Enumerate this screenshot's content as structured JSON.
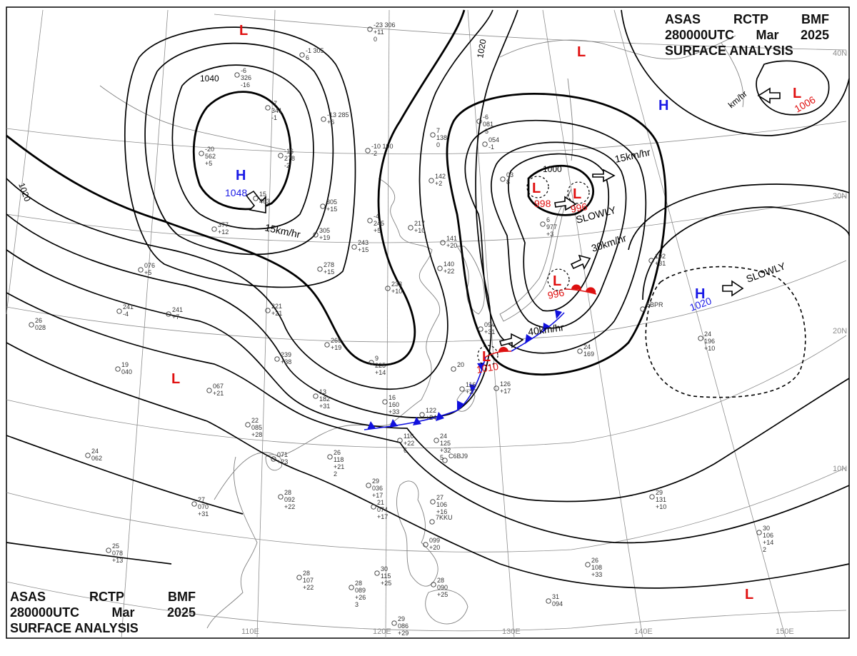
{
  "header": {
    "line1": [
      "ASAS",
      "RCTP",
      "BMF"
    ],
    "line2": [
      "280000UTC",
      "Mar",
      "2025"
    ],
    "line3": "SURFACE ANALYSIS"
  },
  "longitude_labels": [
    "110E",
    "120E",
    "130E",
    "140E",
    "150E"
  ],
  "latitude_labels": [
    "40N",
    "30N",
    "20N",
    "10N"
  ],
  "isobar_labels": [
    "1040",
    "1020",
    "1020",
    "1000"
  ],
  "colors": {
    "high": "#1a1ae6",
    "low": "#e01010",
    "cold_front": "#1010dd",
    "warm_front": "#dd1010",
    "isobar": "#000000",
    "grid": "#8c8c8c",
    "coast": "#808080"
  },
  "pressure_centers": [
    {
      "type": "H",
      "value": "1048",
      "color": "#1a1ae6"
    },
    {
      "type": "H",
      "value": "",
      "color": "#1a1ae6"
    },
    {
      "type": "H",
      "value": "1020",
      "color": "#1a1ae6"
    },
    {
      "type": "L",
      "value": "",
      "color": "#e01010"
    },
    {
      "type": "L",
      "value": "",
      "color": "#e01010"
    },
    {
      "type": "L",
      "value": "1006",
      "color": "#e01010"
    },
    {
      "type": "L",
      "value": "998",
      "color": "#e01010"
    },
    {
      "type": "L",
      "value": "996",
      "color": "#e01010"
    },
    {
      "type": "L",
      "value": "996",
      "color": "#e01010"
    },
    {
      "type": "L",
      "value": "1010",
      "color": "#e01010"
    },
    {
      "type": "L",
      "value": "",
      "color": "#e01010"
    },
    {
      "type": "L",
      "value": "",
      "color": "#e01010"
    }
  ],
  "movements": [
    "15km/hr",
    "15km/hr",
    "SLOWLY",
    "30km/hr",
    "40km/hr",
    "SLOWLY",
    "km/hr"
  ],
  "stations": [
    {
      "lines": [
        "-23 306",
        "+11",
        "0"
      ]
    },
    {
      "lines": [
        "-1 305",
        "6"
      ]
    },
    {
      "lines": [
        "-6",
        "326",
        "-16"
      ]
    },
    {
      "lines": [
        "-7",
        "341",
        "-1"
      ]
    },
    {
      "lines": [
        "-13 285",
        "+6"
      ]
    },
    {
      "lines": [
        "-20",
        "562",
        "+5"
      ]
    },
    {
      "lines": [
        "-16",
        "278",
        "-2"
      ]
    },
    {
      "lines": [
        "15",
        "463"
      ]
    },
    {
      "lines": [
        "-10 190",
        "-2"
      ]
    },
    {
      "lines": [
        "7",
        "138",
        "0"
      ]
    },
    {
      "lines": [
        "-6",
        "081",
        "-5"
      ]
    },
    {
      "lines": [
        "054",
        "-1"
      ]
    },
    {
      "lines": [
        "142",
        "+2"
      ]
    },
    {
      "lines": [
        "03",
        "8"
      ]
    },
    {
      "lines": [
        "6",
        "977",
        "+3"
      ]
    },
    {
      "lines": [
        "192",
        "+31"
      ]
    },
    {
      "lines": [
        "305",
        "+15"
      ]
    },
    {
      "lines": [
        "377",
        "+12"
      ]
    },
    {
      "lines": [
        "305",
        "+19"
      ]
    },
    {
      "lines": [
        "-4",
        "245",
        "+5"
      ]
    },
    {
      "lines": [
        "243",
        "+15"
      ]
    },
    {
      "lines": [
        "217",
        "+10"
      ]
    },
    {
      "lines": [
        "141",
        "+20"
      ]
    },
    {
      "lines": [
        "140",
        "+22"
      ]
    },
    {
      "lines": [
        "233",
        "+10"
      ]
    },
    {
      "lines": [
        "278",
        "+15"
      ]
    },
    {
      "lines": [
        "076",
        "+5"
      ]
    },
    {
      "lines": [
        "241",
        "-4"
      ]
    },
    {
      "lines": [
        "241",
        "+7"
      ]
    },
    {
      "lines": [
        "221",
        "+21"
      ]
    },
    {
      "lines": [
        "26",
        "028"
      ]
    },
    {
      "lines": [
        "19",
        "040"
      ]
    },
    {
      "lines": [
        "239",
        "+38"
      ]
    },
    {
      "lines": [
        "269",
        "+19"
      ]
    },
    {
      "lines": [
        "9",
        "225",
        "+14"
      ]
    },
    {
      "lines": [
        "094",
        "+31"
      ]
    },
    {
      "lines": [
        "067",
        "+21"
      ]
    },
    {
      "lines": [
        "13",
        "182",
        "+31"
      ]
    },
    {
      "lines": [
        "16",
        "160",
        "+33"
      ]
    },
    {
      "lines": [
        "22",
        "085",
        "+28"
      ]
    },
    {
      "lines": [
        "122",
        "+24"
      ]
    },
    {
      "lines": [
        "116",
        "+27"
      ]
    },
    {
      "lines": [
        "126",
        "+17"
      ]
    },
    {
      "lines": [
        "20"
      ]
    },
    {
      "lines": [
        "24",
        "125",
        "+32",
        "5"
      ]
    },
    {
      "lines": [
        "C6BJ9"
      ]
    },
    {
      "lines": [
        "110",
        "+22",
        "6"
      ]
    },
    {
      "lines": [
        "26",
        "118",
        "+21",
        "2"
      ]
    },
    {
      "lines": [
        "071",
        "+23"
      ]
    },
    {
      "lines": [
        "24",
        "062"
      ]
    },
    {
      "lines": [
        "28",
        "092",
        "+22"
      ]
    },
    {
      "lines": [
        "27",
        "070",
        "+31"
      ]
    },
    {
      "lines": [
        "29",
        "036",
        "+17"
      ]
    },
    {
      "lines": [
        "21",
        "074",
        "+17"
      ]
    },
    {
      "lines": [
        "27",
        "106",
        "+16"
      ]
    },
    {
      "lines": [
        "7KKU"
      ]
    },
    {
      "lines": [
        "25",
        "078",
        "+13"
      ]
    },
    {
      "lines": [
        "099",
        "+20"
      ]
    },
    {
      "lines": [
        "28",
        "107",
        "+22"
      ]
    },
    {
      "lines": [
        "28",
        "089",
        "+26",
        "3"
      ]
    },
    {
      "lines": [
        "30",
        "115",
        "+25"
      ]
    },
    {
      "lines": [
        "28",
        "090",
        "+25"
      ]
    },
    {
      "lines": [
        "29",
        "086",
        "+29"
      ]
    },
    {
      "lines": [
        "31",
        "094"
      ]
    },
    {
      "lines": [
        "29",
        "131",
        "+10"
      ]
    },
    {
      "lines": [
        "26",
        "108",
        "+33"
      ]
    },
    {
      "lines": [
        "30",
        "106",
        "+14",
        "2"
      ]
    },
    {
      "lines": [
        "24",
        "196",
        "+10"
      ]
    },
    {
      "lines": [
        "24",
        "169"
      ]
    },
    {
      "lines": [
        "6BPR"
      ]
    }
  ]
}
